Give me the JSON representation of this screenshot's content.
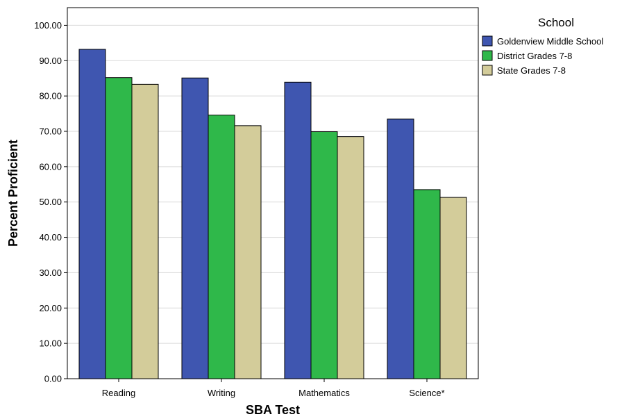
{
  "chart_data": {
    "type": "bar",
    "xlabel": "SBA Test",
    "ylabel": "Percent Proficient",
    "ylim": [
      0,
      105
    ],
    "yticks": [
      "0.00",
      "10.00",
      "20.00",
      "30.00",
      "40.00",
      "50.00",
      "60.00",
      "70.00",
      "80.00",
      "90.00",
      "100.00"
    ],
    "grid": true,
    "categories": [
      "Reading",
      "Writing",
      "Mathematics",
      "Science*"
    ],
    "legend": {
      "title": "School",
      "placement": "right"
    },
    "series": [
      {
        "name": "Goldenview Middle School",
        "color": "#3f56b0",
        "values": [
          93.2,
          85.1,
          83.9,
          73.5
        ]
      },
      {
        "name": "District Grades 7-8",
        "color": "#2fb84a",
        "values": [
          85.2,
          74.6,
          69.9,
          53.5
        ]
      },
      {
        "name": "State Grades 7-8",
        "color": "#d3cc9a",
        "values": [
          83.3,
          71.6,
          68.5,
          51.3
        ]
      }
    ]
  }
}
